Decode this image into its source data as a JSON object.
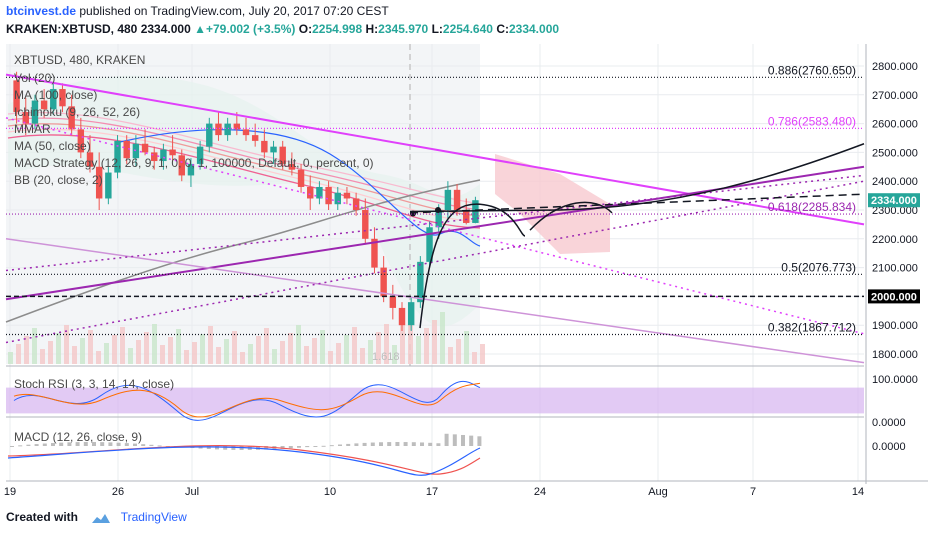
{
  "header": {
    "site": "btcinvest.de",
    "published_text": "published on TradingView.com, July 20, 2017 07:20 CEST",
    "symbol_line": "KRAKEN:XBTUSD, 480",
    "price": "2334.000",
    "change": "+79.002 (+3.5%)",
    "o_label": "O:",
    "o_value": "2254.998",
    "h_label": "H:",
    "h_value": "2345.970",
    "l_label": "L:",
    "l_value": "2254.640",
    "c_label": "C:",
    "c_value": "2334.000"
  },
  "indicators": {
    "title": "XBTUSD, 480, KRAKEN",
    "vol": "Vol (20)",
    "ma100": "MA (100, close)",
    "ichimoku": "Ichimoku (9, 26, 52, 26)",
    "mmar": "MMAR",
    "ma50": "MA (50, close)",
    "macd_strategy": "MACD Strategy (12, 26, 9, 1, 0, 0, 1, 100000, Default, 0, percent, 0)",
    "bb": "BB (20, close, 2)",
    "stoch_rsi": "Stoch RSI (3, 3, 14, 14, close)",
    "macd": "MACD (12, 26, close, 9)"
  },
  "footer": {
    "created_with": "Created with",
    "brand": "TradingView"
  },
  "colors": {
    "up": "#26a69a",
    "down": "#ef5350",
    "magenta": "#e040fb",
    "purple": "#9c27b0",
    "black": "#131722",
    "grid": "#e9ecef",
    "panel_bg": "#f5f5f5",
    "stoch_band": "#d5b3ef"
  },
  "chart_data": {
    "type": "candlestick",
    "price_axis": {
      "ticks": [
        "2800.000",
        "2700.000",
        "2600.000",
        "2500.000",
        "2400.000",
        "2300.000",
        "2200.000",
        "2100.000",
        "2000.000",
        "1900.000",
        "1800.000"
      ],
      "ylim": [
        1750,
        2850
      ]
    },
    "time_axis": {
      "ticks": [
        "19",
        "26",
        "Jul",
        "10",
        "17",
        "24",
        "Aug",
        "7",
        "14"
      ]
    },
    "price_labels": [
      {
        "text": "2334.000",
        "value": 2334,
        "style": "current"
      },
      {
        "text": "2000.000",
        "value": 2000,
        "style": "level"
      }
    ],
    "fib_levels": [
      {
        "label": "0.886(2760.650)",
        "value": 2760.65,
        "color": "#131722"
      },
      {
        "label": "0.786(2583.480)",
        "value": 2583.48,
        "color": "#e040fb"
      },
      {
        "label": "0.618(2285.834)",
        "value": 2285.834,
        "color": "#9c27b0"
      },
      {
        "label": "0.5(2076.773)",
        "value": 2076.773,
        "color": "#131722"
      },
      {
        "label": "0.382(1867.712)",
        "value": 1867.712,
        "color": "#131722"
      }
    ],
    "annotations": [
      {
        "text": "1.618"
      }
    ],
    "stoch_axis": {
      "ticks": [
        "100.0000",
        "0.0000"
      ],
      "ylim": [
        0,
        100
      ]
    },
    "macd_axis": {
      "ticks": [
        "0.0000"
      ]
    },
    "candles": [
      {
        "o": 2750,
        "h": 2780,
        "l": 2600,
        "c": 2640
      },
      {
        "o": 2640,
        "h": 2690,
        "l": 2560,
        "c": 2600
      },
      {
        "o": 2600,
        "h": 2700,
        "l": 2580,
        "c": 2680
      },
      {
        "o": 2680,
        "h": 2720,
        "l": 2620,
        "c": 2650
      },
      {
        "o": 2650,
        "h": 2740,
        "l": 2630,
        "c": 2720
      },
      {
        "o": 2720,
        "h": 2740,
        "l": 2640,
        "c": 2660
      },
      {
        "o": 2660,
        "h": 2700,
        "l": 2560,
        "c": 2580
      },
      {
        "o": 2580,
        "h": 2620,
        "l": 2480,
        "c": 2500
      },
      {
        "o": 2500,
        "h": 2560,
        "l": 2430,
        "c": 2450
      },
      {
        "o": 2450,
        "h": 2500,
        "l": 2300,
        "c": 2340
      },
      {
        "o": 2340,
        "h": 2450,
        "l": 2320,
        "c": 2430
      },
      {
        "o": 2430,
        "h": 2560,
        "l": 2410,
        "c": 2540
      },
      {
        "o": 2540,
        "h": 2560,
        "l": 2460,
        "c": 2480
      },
      {
        "o": 2480,
        "h": 2560,
        "l": 2450,
        "c": 2530
      },
      {
        "o": 2530,
        "h": 2580,
        "l": 2490,
        "c": 2500
      },
      {
        "o": 2500,
        "h": 2520,
        "l": 2440,
        "c": 2470
      },
      {
        "o": 2470,
        "h": 2530,
        "l": 2440,
        "c": 2510
      },
      {
        "o": 2510,
        "h": 2560,
        "l": 2470,
        "c": 2490
      },
      {
        "o": 2490,
        "h": 2510,
        "l": 2400,
        "c": 2420
      },
      {
        "o": 2420,
        "h": 2480,
        "l": 2380,
        "c": 2460
      },
      {
        "o": 2460,
        "h": 2540,
        "l": 2440,
        "c": 2520
      },
      {
        "o": 2520,
        "h": 2620,
        "l": 2500,
        "c": 2600
      },
      {
        "o": 2600,
        "h": 2640,
        "l": 2540,
        "c": 2560
      },
      {
        "o": 2560,
        "h": 2620,
        "l": 2540,
        "c": 2600
      },
      {
        "o": 2600,
        "h": 2640,
        "l": 2560,
        "c": 2580
      },
      {
        "o": 2580,
        "h": 2620,
        "l": 2540,
        "c": 2560
      },
      {
        "o": 2560,
        "h": 2600,
        "l": 2520,
        "c": 2540
      },
      {
        "o": 2540,
        "h": 2580,
        "l": 2480,
        "c": 2500
      },
      {
        "o": 2500,
        "h": 2540,
        "l": 2460,
        "c": 2520
      },
      {
        "o": 2520,
        "h": 2540,
        "l": 2440,
        "c": 2460
      },
      {
        "o": 2460,
        "h": 2500,
        "l": 2420,
        "c": 2440
      },
      {
        "o": 2440,
        "h": 2460,
        "l": 2360,
        "c": 2380
      },
      {
        "o": 2380,
        "h": 2420,
        "l": 2300,
        "c": 2340
      },
      {
        "o": 2340,
        "h": 2400,
        "l": 2320,
        "c": 2380
      },
      {
        "o": 2380,
        "h": 2400,
        "l": 2300,
        "c": 2320
      },
      {
        "o": 2320,
        "h": 2380,
        "l": 2300,
        "c": 2360
      },
      {
        "o": 2360,
        "h": 2380,
        "l": 2320,
        "c": 2340
      },
      {
        "o": 2340,
        "h": 2360,
        "l": 2280,
        "c": 2300
      },
      {
        "o": 2300,
        "h": 2340,
        "l": 2180,
        "c": 2200
      },
      {
        "o": 2200,
        "h": 2240,
        "l": 2080,
        "c": 2100
      },
      {
        "o": 2100,
        "h": 2140,
        "l": 1980,
        "c": 2000
      },
      {
        "o": 2000,
        "h": 2040,
        "l": 1920,
        "c": 1960
      },
      {
        "o": 1960,
        "h": 1980,
        "l": 1880,
        "c": 1900
      },
      {
        "o": 1900,
        "h": 2000,
        "l": 1880,
        "c": 1980
      },
      {
        "o": 1980,
        "h": 2140,
        "l": 1960,
        "c": 2120
      },
      {
        "o": 2120,
        "h": 2260,
        "l": 2100,
        "c": 2240
      },
      {
        "o": 2240,
        "h": 2320,
        "l": 2200,
        "c": 2300
      },
      {
        "o": 2300,
        "h": 2400,
        "l": 2270,
        "c": 2370
      },
      {
        "o": 2370,
        "h": 2390,
        "l": 2280,
        "c": 2300
      },
      {
        "o": 2300,
        "h": 2340,
        "l": 2250,
        "c": 2255
      },
      {
        "o": 2255,
        "h": 2346,
        "l": 2254,
        "c": 2334
      }
    ]
  }
}
